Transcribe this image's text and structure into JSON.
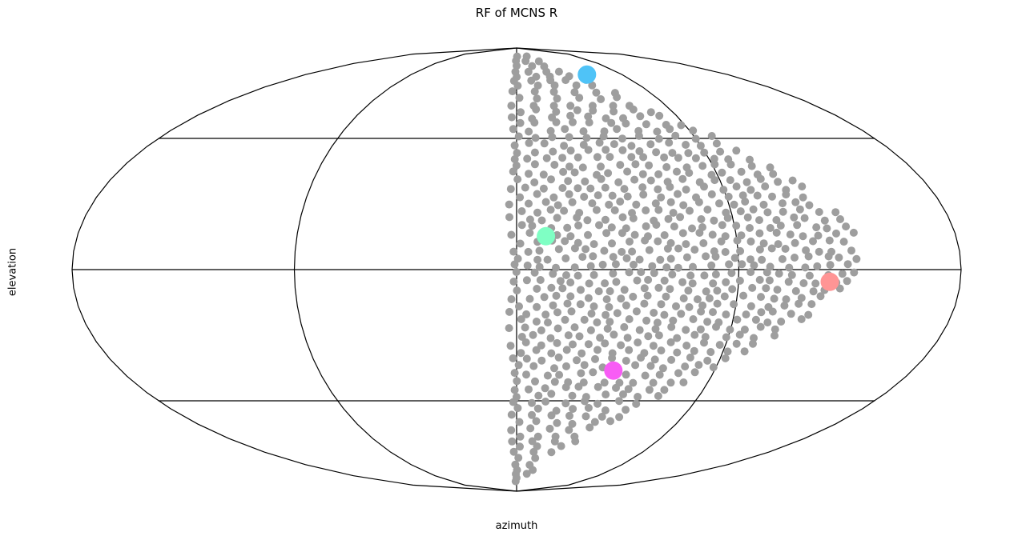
{
  "chart_data": {
    "type": "scatter",
    "projection": "mollweide",
    "title": "RF of MCNS R",
    "xlabel": "azimuth",
    "ylabel": "elevation",
    "xlim_deg": [
      -180,
      180
    ],
    "ylim_deg": [
      -90,
      90
    ],
    "grid": true,
    "grid_meridians_deg": [
      -90,
      0,
      90
    ],
    "grid_parallels_deg": [
      -45,
      0,
      45
    ],
    "background_points": {
      "color": "#9e9e9e",
      "azimuth_range_deg": [
        -2,
        140
      ],
      "elevation_range_deg": [
        -82,
        84
      ],
      "rows_step_deg": 2.6,
      "cols_step_deg": 6.2
    },
    "highlighted_points": [
      {
        "azimuth": 60,
        "elevation": 72,
        "color": "#4fc3f7"
      },
      {
        "azimuth": 12,
        "elevation": 11,
        "color": "#7fffc4"
      },
      {
        "azimuth": 127,
        "elevation": -4,
        "color": "#ff9595"
      },
      {
        "azimuth": 44,
        "elevation": -34,
        "color": "#f85cf5"
      }
    ]
  }
}
